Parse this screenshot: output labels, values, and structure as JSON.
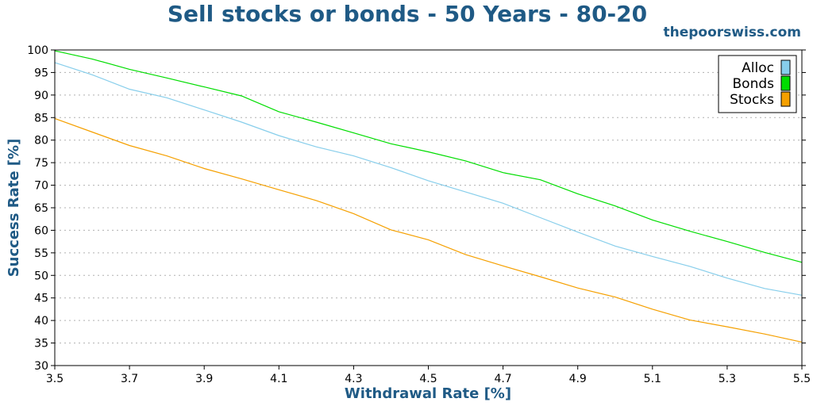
{
  "chart_data": {
    "type": "line",
    "title": "Sell stocks or bonds - 50 Years - 80-20",
    "watermark": "thepoorswiss.com",
    "xlabel": "Withdrawal Rate [%]",
    "ylabel": "Success Rate [%]",
    "xlim": [
      3.5,
      5.5
    ],
    "ylim": [
      30,
      100
    ],
    "xticks": [
      3.5,
      3.7,
      3.9,
      4.1,
      4.3,
      4.5,
      4.7,
      4.9,
      5.1,
      5.3,
      5.5
    ],
    "xtick_labels": [
      "3.5",
      "3.7",
      "3.9",
      "4.1",
      "4.3",
      "4.5",
      "4.7",
      "4.9",
      "5.1",
      "5.3",
      "5.5"
    ],
    "yticks": [
      30,
      35,
      40,
      45,
      50,
      55,
      60,
      65,
      70,
      75,
      80,
      85,
      90,
      95,
      100
    ],
    "ytick_labels": [
      "30",
      "35",
      "40",
      "45",
      "50",
      "55",
      "60",
      "65",
      "70",
      "75",
      "80",
      "85",
      "90",
      "95",
      "100"
    ],
    "grid": "horizontal-dotted",
    "legend_position": "top-right",
    "x": [
      3.5,
      3.6,
      3.7,
      3.8,
      3.9,
      4.0,
      4.1,
      4.2,
      4.3,
      4.4,
      4.5,
      4.6,
      4.7,
      4.8,
      4.9,
      5.0,
      5.1,
      5.2,
      5.3,
      5.4,
      5.5
    ],
    "series": [
      {
        "name": "Alloc",
        "color": "#87ceeb",
        "values": [
          97.2,
          94.5,
          91.3,
          89.4,
          86.7,
          84.0,
          81.0,
          78.5,
          76.5,
          73.9,
          71.0,
          68.5,
          66.0,
          62.8,
          59.6,
          56.5,
          54.2,
          52.0,
          49.4,
          47.1,
          45.6
        ]
      },
      {
        "name": "Bonds",
        "color": "#00dd00",
        "values": [
          99.8,
          98.0,
          95.7,
          93.8,
          91.8,
          89.8,
          86.3,
          84.0,
          81.6,
          79.2,
          77.4,
          75.4,
          72.8,
          71.2,
          68.1,
          65.4,
          62.3,
          59.8,
          57.5,
          55.1,
          52.9
        ]
      },
      {
        "name": "Stocks",
        "color": "#f5a000",
        "values": [
          84.8,
          81.8,
          78.8,
          76.5,
          73.7,
          71.4,
          69.0,
          66.6,
          63.7,
          60.1,
          57.9,
          54.6,
          52.1,
          49.7,
          47.2,
          45.2,
          42.5,
          40.1,
          38.6,
          37.0,
          35.2
        ]
      }
    ]
  }
}
